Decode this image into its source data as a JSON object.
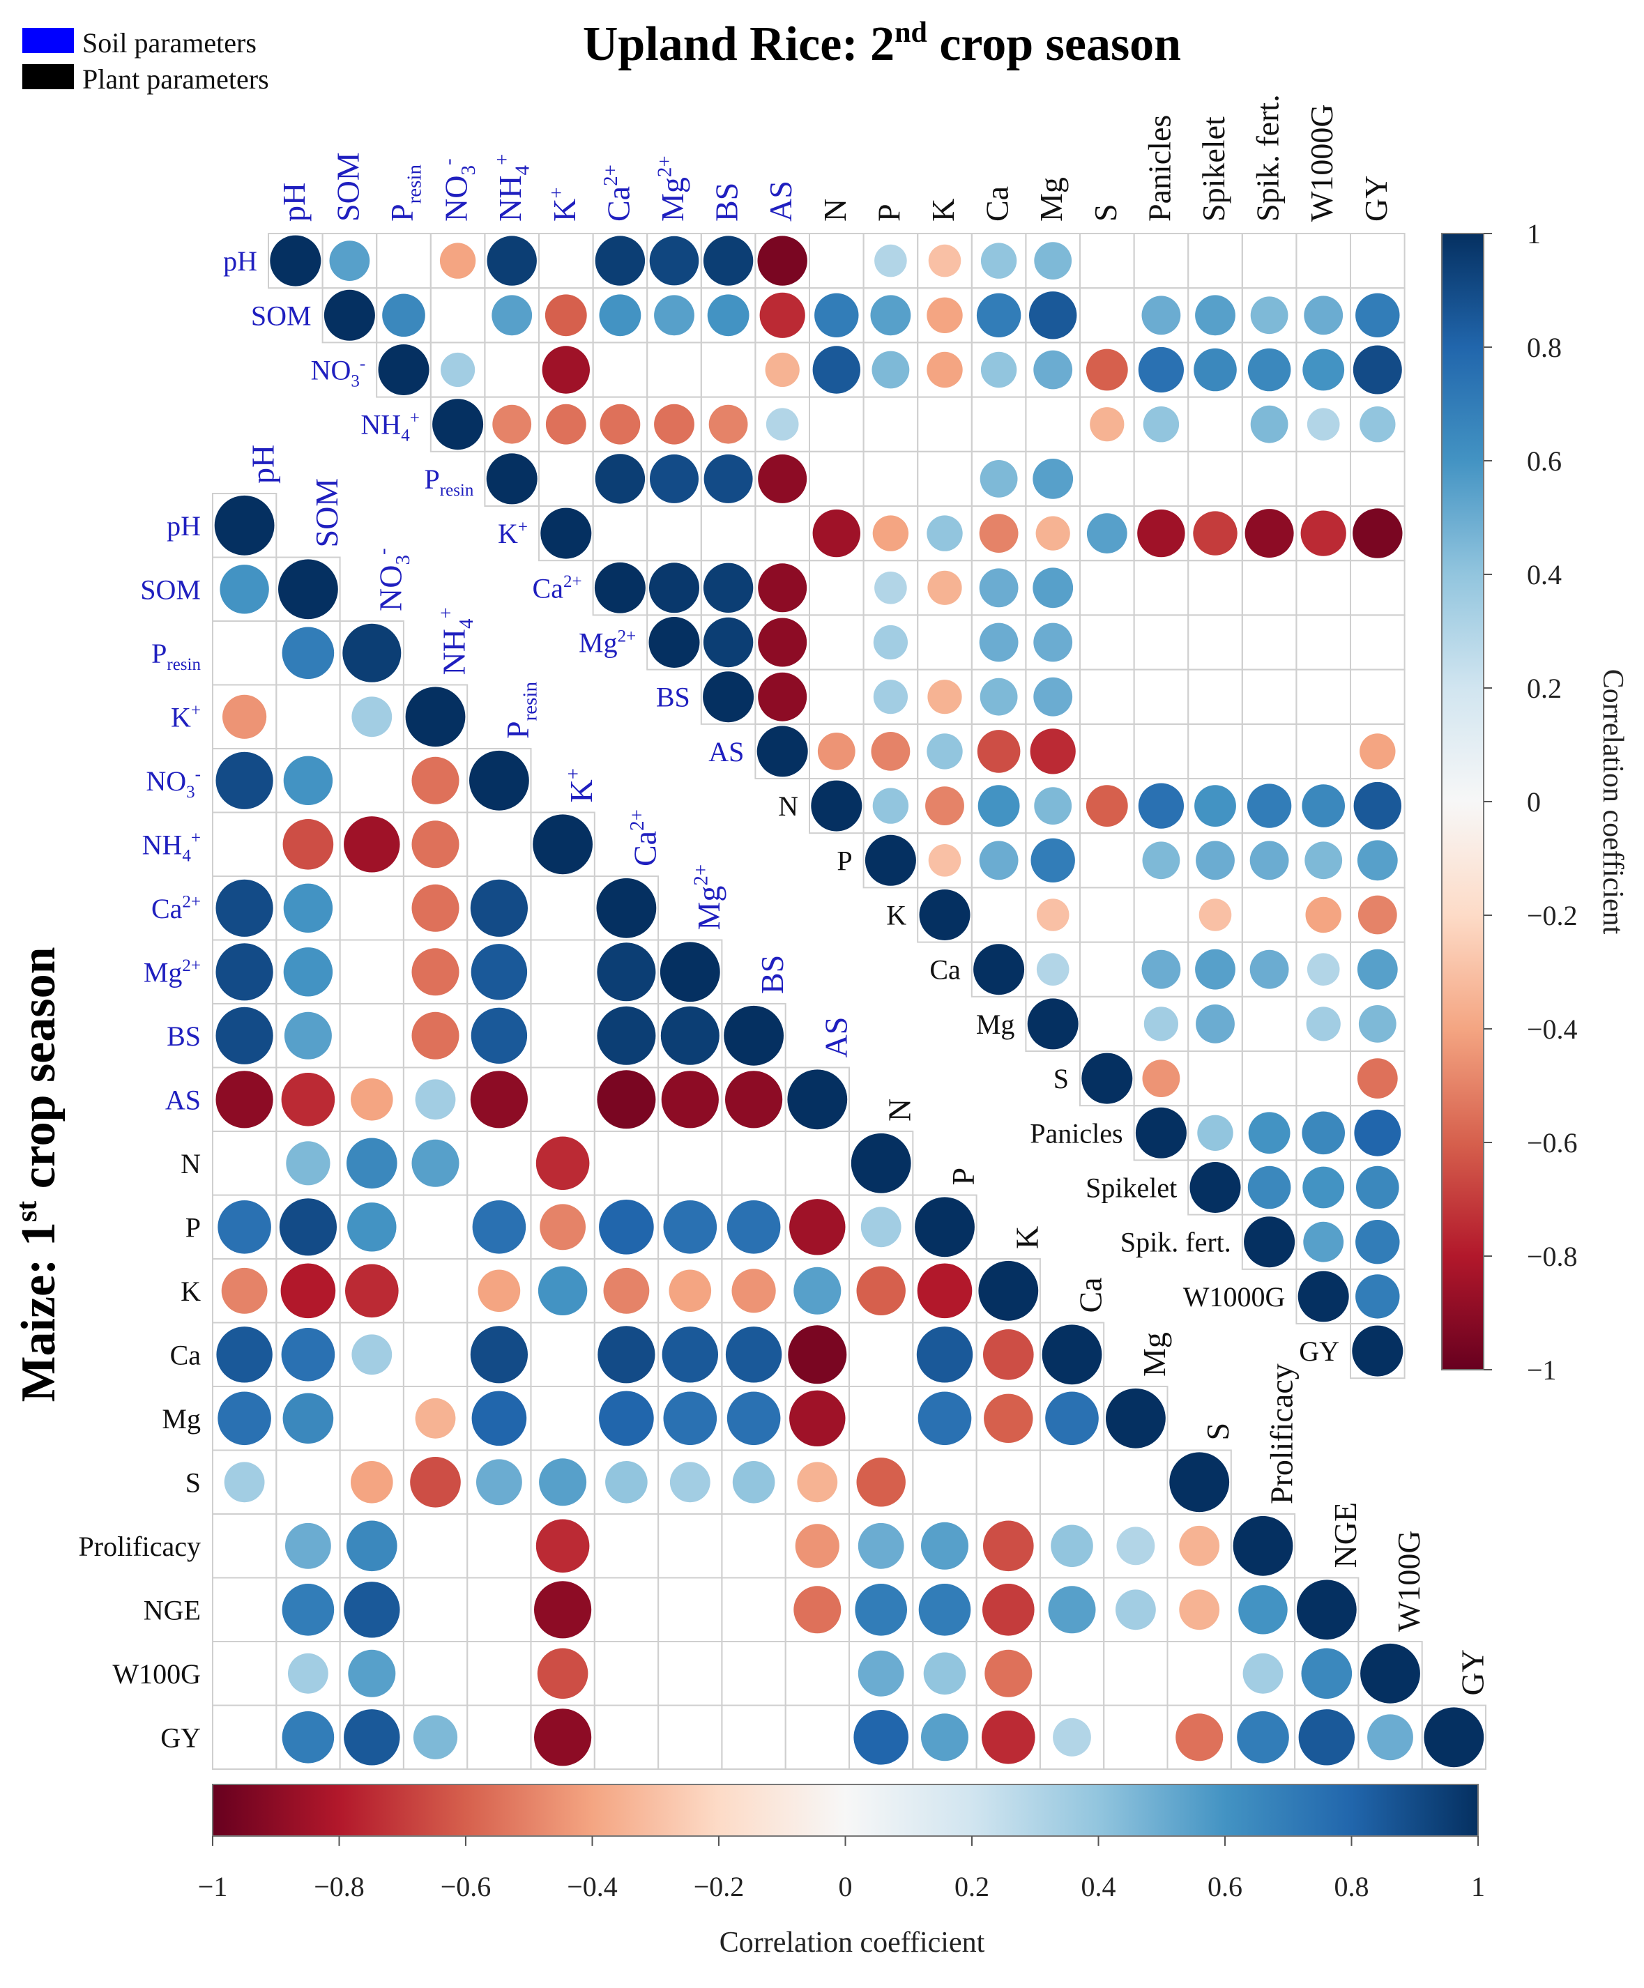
{
  "legend": [
    {
      "label": "Soil parameters",
      "color": "#0000ff"
    },
    {
      "label": "Plant parameters",
      "color": "#000000"
    }
  ],
  "colors": {
    "soil_label": "#1f1fbf",
    "plant_label": "#111111",
    "cell_border": "#cfcfcf",
    "neg_extreme": "#67001f",
    "pos_extreme": "#053061"
  },
  "chart_data": [
    {
      "type": "heatmap",
      "id": "rice",
      "title": "Upland Rice: 2nd crop season",
      "title_main": "Upland Rice: 2",
      "title_sup": "nd",
      "title_tail": " crop season",
      "colorbar_label": "Correlation coefficient",
      "colorbar_range": [
        -1,
        1
      ],
      "colorbar_ticks": [
        "1",
        "0.8",
        "0.6",
        "0.4",
        "0.2",
        "0",
        "−0.2",
        "−0.4",
        "−0.6",
        "−0.8",
        "−1"
      ],
      "labels": [
        "pH",
        "SOM",
        "Presin",
        "NO3-",
        "NH4+",
        "K+",
        "Ca2+",
        "Mg2+",
        "BS",
        "AS",
        "N",
        "P",
        "K",
        "Ca",
        "Mg",
        "S",
        "Panicles",
        "Spikelet",
        "Spik. fert.",
        "W1000G",
        "GY"
      ],
      "row_labels": [
        "pH",
        "SOM",
        "NO3-",
        "NH4+",
        "Presin",
        "K+",
        "Ca2+",
        "Mg2+",
        "BS",
        "AS",
        "N",
        "P",
        "K",
        "Ca",
        "Mg",
        "S",
        "Panicles",
        "Spikelet",
        "Spik. fert.",
        "W1000G",
        "GY"
      ],
      "soil_count": 10,
      "matrix": [
        [
          1,
          0.55,
          0,
          -0.4,
          0.95,
          0,
          0.95,
          0.92,
          0.95,
          -0.95,
          0,
          0.3,
          -0.3,
          0.4,
          0.45,
          0,
          0,
          0,
          0,
          0,
          0
        ],
        [
          0,
          1,
          0.65,
          0,
          0.55,
          -0.6,
          0.6,
          0.55,
          0.6,
          -0.75,
          0.7,
          0.55,
          -0.4,
          0.7,
          0.85,
          0,
          0.5,
          0.55,
          0.45,
          0.5,
          0.7
        ],
        [
          0,
          0,
          1,
          0.35,
          0,
          -0.85,
          0,
          0,
          0,
          -0.35,
          0.85,
          0.45,
          -0.4,
          0.4,
          0.5,
          -0.6,
          0.75,
          0.65,
          0.65,
          0.6,
          0.9
        ],
        [
          0,
          0,
          0,
          1,
          -0.5,
          -0.55,
          -0.55,
          -0.55,
          -0.5,
          0.3,
          0,
          0,
          0,
          0,
          0,
          -0.35,
          0.4,
          0,
          0.45,
          0.3,
          0.4
        ],
        [
          0,
          0,
          0,
          0,
          1,
          0,
          0.95,
          0.9,
          0.9,
          -0.9,
          0,
          0,
          0,
          0.45,
          0.55,
          0,
          0,
          0,
          0,
          0,
          0
        ],
        [
          0,
          0,
          0,
          0,
          0,
          1,
          0,
          0,
          0,
          0,
          -0.85,
          -0.4,
          0.4,
          -0.5,
          -0.35,
          0.55,
          -0.85,
          -0.7,
          -0.9,
          -0.75,
          -0.95
        ],
        [
          0,
          0,
          0,
          0,
          0,
          0,
          1,
          0.97,
          0.95,
          -0.9,
          0,
          0.3,
          -0.35,
          0.5,
          0.55,
          0,
          0,
          0,
          0,
          0,
          0
        ],
        [
          0,
          0,
          0,
          0,
          0,
          0,
          0,
          1,
          0.95,
          -0.9,
          0,
          0.35,
          0,
          0.5,
          0.5,
          0,
          0,
          0,
          0,
          0,
          0
        ],
        [
          0,
          0,
          0,
          0,
          0,
          0,
          0,
          0,
          1,
          -0.9,
          0,
          0.35,
          -0.35,
          0.45,
          0.5,
          0,
          0,
          0,
          0,
          0,
          0
        ],
        [
          0,
          0,
          0,
          0,
          0,
          0,
          0,
          0,
          0,
          1,
          -0.45,
          -0.5,
          0.4,
          -0.65,
          -0.75,
          0,
          0,
          0,
          0,
          0,
          -0.4
        ],
        [
          0,
          0,
          0,
          0,
          0,
          0,
          0,
          0,
          0,
          0,
          1,
          0.4,
          -0.5,
          0.6,
          0.45,
          -0.6,
          0.75,
          0.6,
          0.7,
          0.65,
          0.85
        ],
        [
          0,
          0,
          0,
          0,
          0,
          0,
          0,
          0,
          0,
          0,
          0,
          1,
          -0.3,
          0.5,
          0.7,
          0,
          0.45,
          0.5,
          0.5,
          0.45,
          0.55
        ],
        [
          0,
          0,
          0,
          0,
          0,
          0,
          0,
          0,
          0,
          0,
          0,
          0,
          1,
          0,
          -0.3,
          0,
          0,
          -0.3,
          0,
          -0.4,
          -0.5
        ],
        [
          0,
          0,
          0,
          0,
          0,
          0,
          0,
          0,
          0,
          0,
          0,
          0,
          0,
          1,
          0.3,
          0,
          0.5,
          0.55,
          0.5,
          0.3,
          0.55
        ],
        [
          0,
          0,
          0,
          0,
          0,
          0,
          0,
          0,
          0,
          0,
          0,
          0,
          0,
          0,
          1,
          0,
          0.35,
          0.5,
          0,
          0.35,
          0.45
        ],
        [
          0,
          0,
          0,
          0,
          0,
          0,
          0,
          0,
          0,
          0,
          0,
          0,
          0,
          0,
          0,
          1,
          -0.45,
          0,
          0,
          0,
          -0.55
        ],
        [
          0,
          0,
          0,
          0,
          0,
          0,
          0,
          0,
          0,
          0,
          0,
          0,
          0,
          0,
          0,
          0,
          1,
          0.4,
          0.6,
          0.65,
          0.8
        ],
        [
          0,
          0,
          0,
          0,
          0,
          0,
          0,
          0,
          0,
          0,
          0,
          0,
          0,
          0,
          0,
          0,
          0,
          1,
          0.65,
          0.6,
          0.65
        ],
        [
          0,
          0,
          0,
          0,
          0,
          0,
          0,
          0,
          0,
          0,
          0,
          0,
          0,
          0,
          0,
          0,
          0,
          0,
          1,
          0.55,
          0.7
        ],
        [
          0,
          0,
          0,
          0,
          0,
          0,
          0,
          0,
          0,
          0,
          0,
          0,
          0,
          0,
          0,
          0,
          0,
          0,
          0,
          1,
          0.7
        ],
        [
          0,
          0,
          0,
          0,
          0,
          0,
          0,
          0,
          0,
          0,
          0,
          0,
          0,
          0,
          0,
          0,
          0,
          0,
          0,
          0,
          1
        ]
      ]
    },
    {
      "type": "heatmap",
      "id": "maize",
      "title": "Maize: 1st crop season",
      "title_main": "Maize: 1",
      "title_sup": "st",
      "title_tail": " crop season",
      "colorbar_label": "Correlation coefficient",
      "colorbar_range": [
        -1,
        1
      ],
      "colorbar_ticks": [
        "−1",
        "−0.8",
        "−0.6",
        "−0.4",
        "−0.2",
        "0",
        "0.2",
        "0.4",
        "0.6",
        "0.8",
        "1"
      ],
      "labels": [
        "pH",
        "SOM",
        "Presin",
        "K+",
        "NO3-",
        "NH4+",
        "Ca2+",
        "Mg2+",
        "BS",
        "AS",
        "N",
        "P",
        "K",
        "Ca",
        "Mg",
        "S",
        "Prolificacy",
        "NGE",
        "W100G",
        "GY"
      ],
      "col_labels": [
        "pH",
        "SOM",
        "NO3-",
        "NH4+",
        "Presin",
        "K+",
        "Ca2+",
        "Mg2+",
        "BS",
        "AS",
        "N",
        "P",
        "K",
        "Ca",
        "Mg",
        "S",
        "Prolificacy",
        "NGE",
        "W100G",
        "GY"
      ],
      "soil_count": 10,
      "matrix": [
        [
          1,
          0,
          0,
          0,
          0,
          0,
          0,
          0,
          0,
          0,
          0,
          0,
          0,
          0,
          0,
          0,
          0,
          0,
          0,
          0
        ],
        [
          0.6,
          1,
          0,
          0,
          0,
          0,
          0,
          0,
          0,
          0,
          0,
          0,
          0,
          0,
          0,
          0,
          0,
          0,
          0,
          0
        ],
        [
          0,
          0.7,
          0.95,
          0,
          0,
          0,
          0,
          0,
          0,
          0,
          0,
          0,
          0,
          0,
          0,
          0,
          0,
          0,
          0,
          0
        ],
        [
          -0.45,
          0,
          0.35,
          1,
          0,
          0,
          0,
          0,
          0,
          0,
          0,
          0,
          0,
          0,
          0,
          0,
          0,
          0,
          0,
          0
        ],
        [
          0.9,
          0.6,
          0,
          -0.55,
          1,
          0,
          0,
          0,
          0,
          0,
          0,
          0,
          0,
          0,
          0,
          0,
          0,
          0,
          0,
          0
        ],
        [
          0,
          -0.65,
          -0.85,
          -0.55,
          0,
          1,
          0,
          0,
          0,
          0,
          0,
          0,
          0,
          0,
          0,
          0,
          0,
          0,
          0,
          0
        ],
        [
          0.9,
          0.6,
          0,
          -0.55,
          0.9,
          0,
          1,
          0,
          0,
          0,
          0,
          0,
          0,
          0,
          0,
          0,
          0,
          0,
          0,
          0
        ],
        [
          0.9,
          0.6,
          0,
          -0.55,
          0.85,
          0,
          0.95,
          1,
          0,
          0,
          0,
          0,
          0,
          0,
          0,
          0,
          0,
          0,
          0,
          0
        ],
        [
          0.9,
          0.55,
          0,
          -0.55,
          0.85,
          0,
          0.95,
          0.95,
          1,
          0,
          0,
          0,
          0,
          0,
          0,
          0,
          0,
          0,
          0,
          0
        ],
        [
          -0.9,
          -0.75,
          -0.4,
          0.35,
          -0.9,
          0,
          -0.95,
          -0.9,
          -0.9,
          1,
          0,
          0,
          0,
          0,
          0,
          0,
          0,
          0,
          0,
          0
        ],
        [
          0,
          0.45,
          0.65,
          0.55,
          0,
          -0.75,
          0,
          0,
          0,
          0,
          1,
          0,
          0,
          0,
          0,
          0,
          0,
          0,
          0,
          0
        ],
        [
          0.75,
          0.9,
          0.6,
          0,
          0.75,
          -0.5,
          0.8,
          0.75,
          0.75,
          -0.85,
          0.35,
          1,
          0,
          0,
          0,
          0,
          0,
          0,
          0,
          0
        ],
        [
          -0.5,
          -0.8,
          -0.75,
          0,
          -0.4,
          0.6,
          -0.5,
          -0.4,
          -0.45,
          0.55,
          -0.6,
          -0.8,
          1,
          0,
          0,
          0,
          0,
          0,
          0,
          0
        ],
        [
          0.85,
          0.75,
          0.35,
          0,
          0.9,
          0,
          0.9,
          0.85,
          0.85,
          -0.95,
          0,
          0.85,
          -0.65,
          1,
          0,
          0,
          0,
          0,
          0,
          0
        ],
        [
          0.75,
          0.65,
          0,
          -0.35,
          0.8,
          0,
          0.8,
          0.75,
          0.75,
          -0.85,
          0,
          0.75,
          -0.6,
          0.75,
          1,
          0,
          0,
          0,
          0,
          0
        ],
        [
          0.35,
          0,
          -0.4,
          -0.65,
          0.5,
          0.55,
          0.4,
          0.35,
          0.4,
          -0.35,
          -0.6,
          0,
          0,
          0,
          0,
          1,
          0,
          0,
          0,
          0
        ],
        [
          0,
          0.5,
          0.65,
          0,
          0,
          -0.75,
          0,
          0,
          0,
          -0.45,
          0.5,
          0.55,
          -0.65,
          0.4,
          0.3,
          -0.35,
          1,
          0,
          0,
          0
        ],
        [
          0,
          0.7,
          0.85,
          0,
          0,
          -0.9,
          0,
          0,
          0,
          -0.55,
          0.7,
          0.7,
          -0.7,
          0.55,
          0.35,
          -0.35,
          0.6,
          1,
          0,
          0
        ],
        [
          0,
          0.35,
          0.55,
          0,
          0,
          -0.65,
          0,
          0,
          0,
          0,
          0.5,
          0.4,
          -0.55,
          0,
          0,
          0,
          0.35,
          0.65,
          1,
          0
        ],
        [
          0,
          0.7,
          0.85,
          0.45,
          0,
          -0.9,
          0,
          0,
          0,
          0,
          0.8,
          0.55,
          -0.75,
          0.3,
          0,
          -0.55,
          0.7,
          0.85,
          0.5,
          1
        ]
      ]
    }
  ]
}
